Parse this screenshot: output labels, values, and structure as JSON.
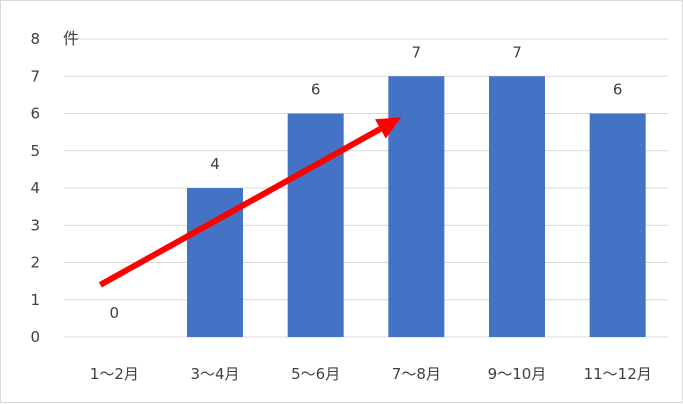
{
  "chart_data": {
    "type": "bar",
    "categories": [
      "1～2月",
      "3～4月",
      "5～6月",
      "7～8月",
      "9～10月",
      "11～12月"
    ],
    "values": [
      0,
      4,
      6,
      7,
      7,
      6
    ],
    "ylabel": "件",
    "ylim": [
      0,
      8
    ],
    "yticks": [
      "0",
      "1",
      "2",
      "3",
      "4",
      "5",
      "6",
      "7",
      "8"
    ],
    "data_labels": true,
    "grid": true,
    "bar_color": "#4472C4",
    "annotation": {
      "type": "trend-arrow",
      "color": "#FF0000",
      "from": [
        0,
        1.4
      ],
      "to": [
        3,
        5.9
      ]
    }
  }
}
